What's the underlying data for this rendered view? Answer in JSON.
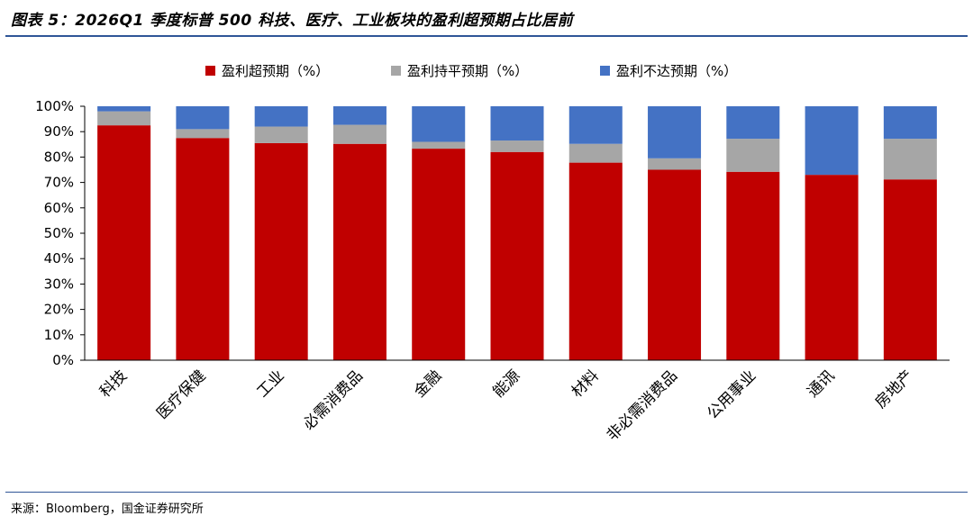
{
  "title": "图表 5：2026Q1 季度标普 500 科技、医疗、工业板块的盈利超预期占比居前",
  "source": "来源：Bloomberg，国金证券研究所",
  "chart_data": {
    "type": "bar",
    "stacked": true,
    "categories": [
      "科技",
      "医疗保健",
      "工业",
      "必需消费品",
      "金融",
      "能源",
      "材料",
      "非必需消费品",
      "公用事业",
      "通讯",
      "房地产"
    ],
    "series": [
      {
        "name": "盈利超预期（%）",
        "color": "#c00000",
        "values": [
          92.5,
          87.5,
          85.5,
          85.2,
          83.3,
          82.0,
          77.8,
          75.0,
          74.2,
          73.0,
          71.2
        ]
      },
      {
        "name": "盈利持平预期（%）",
        "color": "#a6a6a6",
        "values": [
          5.5,
          3.5,
          6.5,
          7.5,
          2.7,
          4.5,
          7.4,
          4.5,
          13.0,
          0.0,
          16.0
        ]
      },
      {
        "name": "盈利不达预期（%）",
        "color": "#4472c4",
        "values": [
          2.0,
          9.0,
          8.0,
          7.3,
          14.0,
          13.5,
          14.8,
          20.5,
          12.8,
          27.0,
          12.8
        ]
      }
    ],
    "yticks": [
      "0%",
      "10%",
      "20%",
      "30%",
      "40%",
      "50%",
      "60%",
      "70%",
      "80%",
      "90%",
      "100%"
    ],
    "ylim": [
      0,
      100
    ],
    "legend_position": "top",
    "grid": false
  }
}
